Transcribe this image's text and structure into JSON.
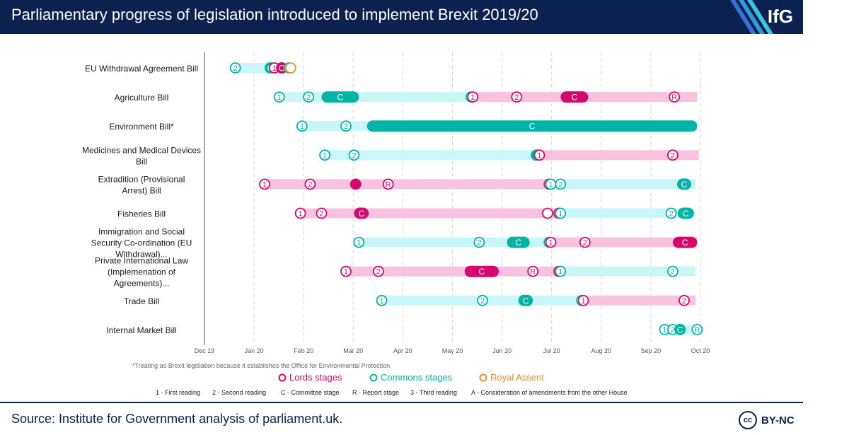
{
  "header": {
    "title": "Parliamentary progress of legislation introduced to implement Brexit 2019/20",
    "logo": "IfG"
  },
  "footer": {
    "source": "Source: Institute for Government analysis of parliament.uk.",
    "license": "BY-NC",
    "license_icon": "cc"
  },
  "colors": {
    "navy": "#0b2150",
    "lords": "#d4086d",
    "lords_light": "#f9c3e0",
    "commons": "#00b5a5",
    "commons_light": "#c9f7f7",
    "royal": "#e0902a"
  },
  "chart_data": {
    "type": "timeline",
    "title": "Parliamentary progress of legislation introduced to implement Brexit 2019/20",
    "x_ticks": [
      "Dec 19",
      "Jan 20",
      "Feb 20",
      "Mar 20",
      "Apr 20",
      "May 20",
      "Jun 20",
      "Jul 20",
      "Aug 20",
      "Sep 20",
      "Oct 20"
    ],
    "x_range": [
      "2019-12-01",
      "2020-10-01"
    ],
    "grid": "vertical dashed",
    "legend_position": "bottom",
    "footnote": "*Treating as Brexit legislation because it establishes the Office for Environmental Protection",
    "legend": [
      {
        "name": "Lords stages",
        "house": "lords"
      },
      {
        "name": "Commons stages",
        "house": "commons"
      },
      {
        "name": "Royal Assent",
        "house": "royal"
      }
    ],
    "key": [
      "1 - First reading",
      "2 - Second reading",
      "C - Committee stage",
      "R - Report stage",
      "3 - Third reading",
      "A - Consideration of amendments from the other House"
    ],
    "bills": [
      {
        "name": "EU Withdrawal Agreement Bill",
        "periods": [
          {
            "house": "commons",
            "start": "2019-12-19",
            "end": "2020-01-09"
          },
          {
            "house": "lords",
            "start": "2020-01-13",
            "end": "2020-01-22"
          }
        ],
        "stages": [
          {
            "label": "2",
            "house": "commons",
            "date": "2019-12-20"
          },
          {
            "label": "C",
            "house": "commons",
            "date": "2020-01-07",
            "end": "2020-01-09"
          },
          {
            "label": "1",
            "house": "lords",
            "date": "2020-01-13"
          },
          {
            "label": "C",
            "house": "lords",
            "date": "2020-01-14",
            "end": "2020-01-20"
          },
          {
            "label": "A",
            "house": "commons",
            "date": "2020-01-22"
          },
          {
            "label": "",
            "house": "royal",
            "date": "2020-01-23"
          }
        ]
      },
      {
        "name": "Agriculture Bill",
        "periods": [
          {
            "house": "commons",
            "start": "2020-01-16",
            "end": "2020-05-13"
          },
          {
            "house": "lords",
            "start": "2020-05-14",
            "end": "2020-09-29"
          }
        ],
        "stages": [
          {
            "label": "1",
            "house": "commons",
            "date": "2020-01-16"
          },
          {
            "label": "2",
            "house": "commons",
            "date": "2020-02-03"
          },
          {
            "label": "C",
            "house": "commons",
            "date": "2020-02-11",
            "end": "2020-03-05"
          },
          {
            "label": "3",
            "house": "commons",
            "date": "2020-05-13"
          },
          {
            "label": "1",
            "house": "lords",
            "date": "2020-05-14"
          },
          {
            "label": "2",
            "house": "lords",
            "date": "2020-06-10"
          },
          {
            "label": "C",
            "house": "lords",
            "date": "2020-07-07",
            "end": "2020-07-24"
          },
          {
            "label": "R",
            "house": "lords",
            "date": "2020-09-15"
          }
        ]
      },
      {
        "name": "Environment Bill*",
        "periods": [
          {
            "house": "commons",
            "start": "2020-01-30",
            "end": "2020-09-29"
          }
        ],
        "stages": [
          {
            "label": "1",
            "house": "commons",
            "date": "2020-01-30"
          },
          {
            "label": "2",
            "house": "commons",
            "date": "2020-02-26"
          },
          {
            "label": "C",
            "house": "commons",
            "date": "2020-03-10",
            "end": "2020-09-29"
          }
        ]
      },
      {
        "name": "Medicines and Medical Devices Bill",
        "periods": [
          {
            "house": "commons",
            "start": "2020-02-13",
            "end": "2020-06-23"
          },
          {
            "house": "lords",
            "start": "2020-06-24",
            "end": "2020-09-30"
          }
        ],
        "stages": [
          {
            "label": "1",
            "house": "commons",
            "date": "2020-02-13"
          },
          {
            "label": "2",
            "house": "commons",
            "date": "2020-03-02"
          },
          {
            "label": "C",
            "house": "commons",
            "date": "2020-06-23"
          },
          {
            "label": "1",
            "house": "lords",
            "date": "2020-06-24"
          },
          {
            "label": "2",
            "house": "lords",
            "date": "2020-09-14"
          }
        ]
      },
      {
        "name": "Extradition (Provisional Arrest) Bill",
        "periods": [
          {
            "house": "lords",
            "start": "2020-01-07",
            "end": "2020-06-30"
          },
          {
            "house": "commons",
            "start": "2020-07-01",
            "end": "2020-09-28"
          }
        ],
        "stages": [
          {
            "label": "1",
            "house": "lords",
            "date": "2020-01-07"
          },
          {
            "label": "2",
            "house": "lords",
            "date": "2020-02-04"
          },
          {
            "label": "",
            "house": "lords",
            "date": "2020-03-03"
          },
          {
            "label": "R",
            "house": "lords",
            "date": "2020-03-23"
          },
          {
            "label": "3",
            "house": "lords",
            "date": "2020-06-30"
          },
          {
            "label": "1",
            "house": "commons",
            "date": "2020-07-01"
          },
          {
            "label": "2",
            "house": "commons",
            "date": "2020-07-07"
          },
          {
            "label": "C",
            "house": "commons",
            "date": "2020-09-21"
          }
        ]
      },
      {
        "name": "Fisheries Bill",
        "periods": [
          {
            "house": "lords",
            "start": "2020-01-29",
            "end": "2020-07-06"
          },
          {
            "house": "commons",
            "start": "2020-07-07",
            "end": "2020-09-27"
          }
        ],
        "stages": [
          {
            "label": "1",
            "house": "lords",
            "date": "2020-01-29"
          },
          {
            "label": "2",
            "house": "lords",
            "date": "2020-02-11"
          },
          {
            "label": "C",
            "house": "lords",
            "date": "2020-03-02",
            "end": "2020-03-11"
          },
          {
            "label": "",
            "house": "lords",
            "date": "2020-06-29"
          },
          {
            "label": "3",
            "house": "lords",
            "date": "2020-07-06"
          },
          {
            "label": "1",
            "house": "commons",
            "date": "2020-07-07"
          },
          {
            "label": "2",
            "house": "commons",
            "date": "2020-09-13"
          },
          {
            "label": "C",
            "house": "commons",
            "date": "2020-09-17",
            "end": "2020-09-27"
          }
        ]
      },
      {
        "name": "Immigration and Social Security Co-ordination (EU Withdrawal)...",
        "periods": [
          {
            "house": "commons",
            "start": "2020-03-05",
            "end": "2020-06-30"
          },
          {
            "house": "lords",
            "start": "2020-07-01",
            "end": "2020-09-29"
          }
        ],
        "stages": [
          {
            "label": "1",
            "house": "commons",
            "date": "2020-03-05"
          },
          {
            "label": "2",
            "house": "commons",
            "date": "2020-05-18"
          },
          {
            "label": "C",
            "house": "commons",
            "date": "2020-06-04",
            "end": "2020-06-18"
          },
          {
            "label": "3",
            "house": "commons",
            "date": "2020-06-30"
          },
          {
            "label": "1",
            "house": "lords",
            "date": "2020-07-01"
          },
          {
            "label": "2",
            "house": "lords",
            "date": "2020-07-22"
          },
          {
            "label": "C",
            "house": "lords",
            "date": "2020-09-14",
            "end": "2020-09-29"
          }
        ]
      },
      {
        "name": "Private International Law (Implemenation of Agreements)...",
        "periods": [
          {
            "house": "lords",
            "start": "2020-02-26",
            "end": "2020-07-06"
          },
          {
            "house": "commons",
            "start": "2020-07-07",
            "end": "2020-09-28"
          }
        ],
        "stages": [
          {
            "label": "1",
            "house": "lords",
            "date": "2020-02-26"
          },
          {
            "label": "2",
            "house": "lords",
            "date": "2020-03-17"
          },
          {
            "label": "C",
            "house": "lords",
            "date": "2020-05-09",
            "end": "2020-05-30"
          },
          {
            "label": "R",
            "house": "lords",
            "date": "2020-06-20"
          },
          {
            "label": "3",
            "house": "lords",
            "date": "2020-07-06"
          },
          {
            "label": "1",
            "house": "commons",
            "date": "2020-07-07"
          },
          {
            "label": "2",
            "house": "commons",
            "date": "2020-09-14"
          }
        ]
      },
      {
        "name": "Trade Bill",
        "periods": [
          {
            "house": "commons",
            "start": "2020-03-19",
            "end": "2020-07-20"
          },
          {
            "house": "lords",
            "start": "2020-07-21",
            "end": "2020-09-28"
          }
        ],
        "stages": [
          {
            "label": "1",
            "house": "commons",
            "date": "2020-03-19"
          },
          {
            "label": "2",
            "house": "commons",
            "date": "2020-05-20"
          },
          {
            "label": "C",
            "house": "commons",
            "date": "2020-06-11",
            "end": "2020-06-20"
          },
          {
            "label": "3",
            "house": "commons",
            "date": "2020-07-20"
          },
          {
            "label": "1",
            "house": "lords",
            "date": "2020-07-21"
          },
          {
            "label": "2",
            "house": "lords",
            "date": "2020-09-21"
          }
        ]
      },
      {
        "name": "Internal Market Bill",
        "periods": [
          {
            "house": "commons",
            "start": "2020-09-09",
            "end": "2020-09-29"
          }
        ],
        "stages": [
          {
            "label": "1",
            "house": "commons",
            "date": "2020-09-09"
          },
          {
            "label": "2",
            "house": "commons",
            "date": "2020-09-14"
          },
          {
            "label": "C",
            "house": "commons",
            "date": "2020-09-15",
            "end": "2020-09-22"
          },
          {
            "label": "R",
            "house": "commons",
            "date": "2020-09-29"
          }
        ]
      }
    ]
  }
}
